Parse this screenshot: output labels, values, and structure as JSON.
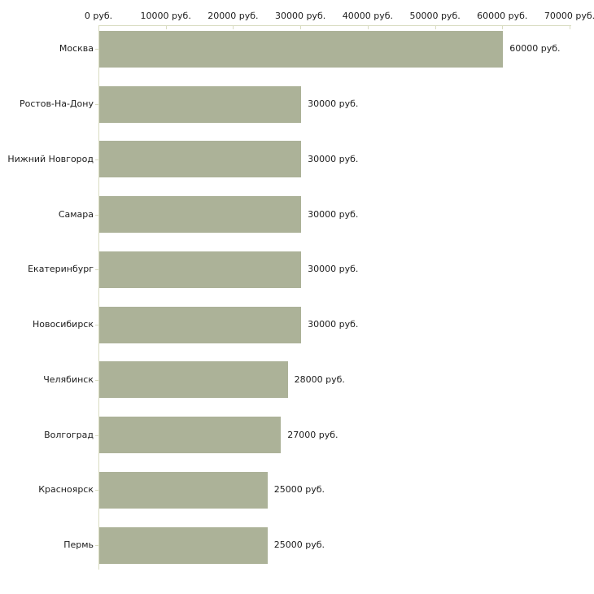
{
  "chart_data": {
    "type": "bar",
    "orientation": "horizontal",
    "title": "",
    "xlabel": "",
    "ylabel": "",
    "unit": "руб.",
    "categories": [
      "Москва",
      "Ростов-На-Дону",
      "Нижний Новгород",
      "Самара",
      "Екатеринбург",
      "Новосибирск",
      "Челябинск",
      "Волгоград",
      "Красноярск",
      "Пермь"
    ],
    "values": [
      60000,
      30000,
      30000,
      30000,
      30000,
      30000,
      28000,
      27000,
      25000,
      25000
    ],
    "value_labels": [
      "60000 руб.",
      "30000 руб.",
      "30000 руб.",
      "30000 руб.",
      "30000 руб.",
      "30000 руб.",
      "28000 руб.",
      "27000 руб.",
      "25000 руб.",
      "25000 руб."
    ],
    "x_ticks": [
      {
        "value": 0,
        "label": "0 руб."
      },
      {
        "value": 10000,
        "label": "10000 руб."
      },
      {
        "value": 20000,
        "label": "20000 руб."
      },
      {
        "value": 30000,
        "label": "30000 руб."
      },
      {
        "value": 40000,
        "label": "40000 руб."
      },
      {
        "value": 50000,
        "label": "50000 руб."
      },
      {
        "value": 60000,
        "label": "60000 руб."
      },
      {
        "value": 70000,
        "label": "70000 руб."
      }
    ],
    "xlim": [
      0,
      70000
    ],
    "grid": false,
    "legend": null,
    "colors": {
      "bar": "#acb298",
      "axis": "#d9dcc1",
      "text": "#1c1c1c",
      "background": "#ffffff"
    }
  }
}
